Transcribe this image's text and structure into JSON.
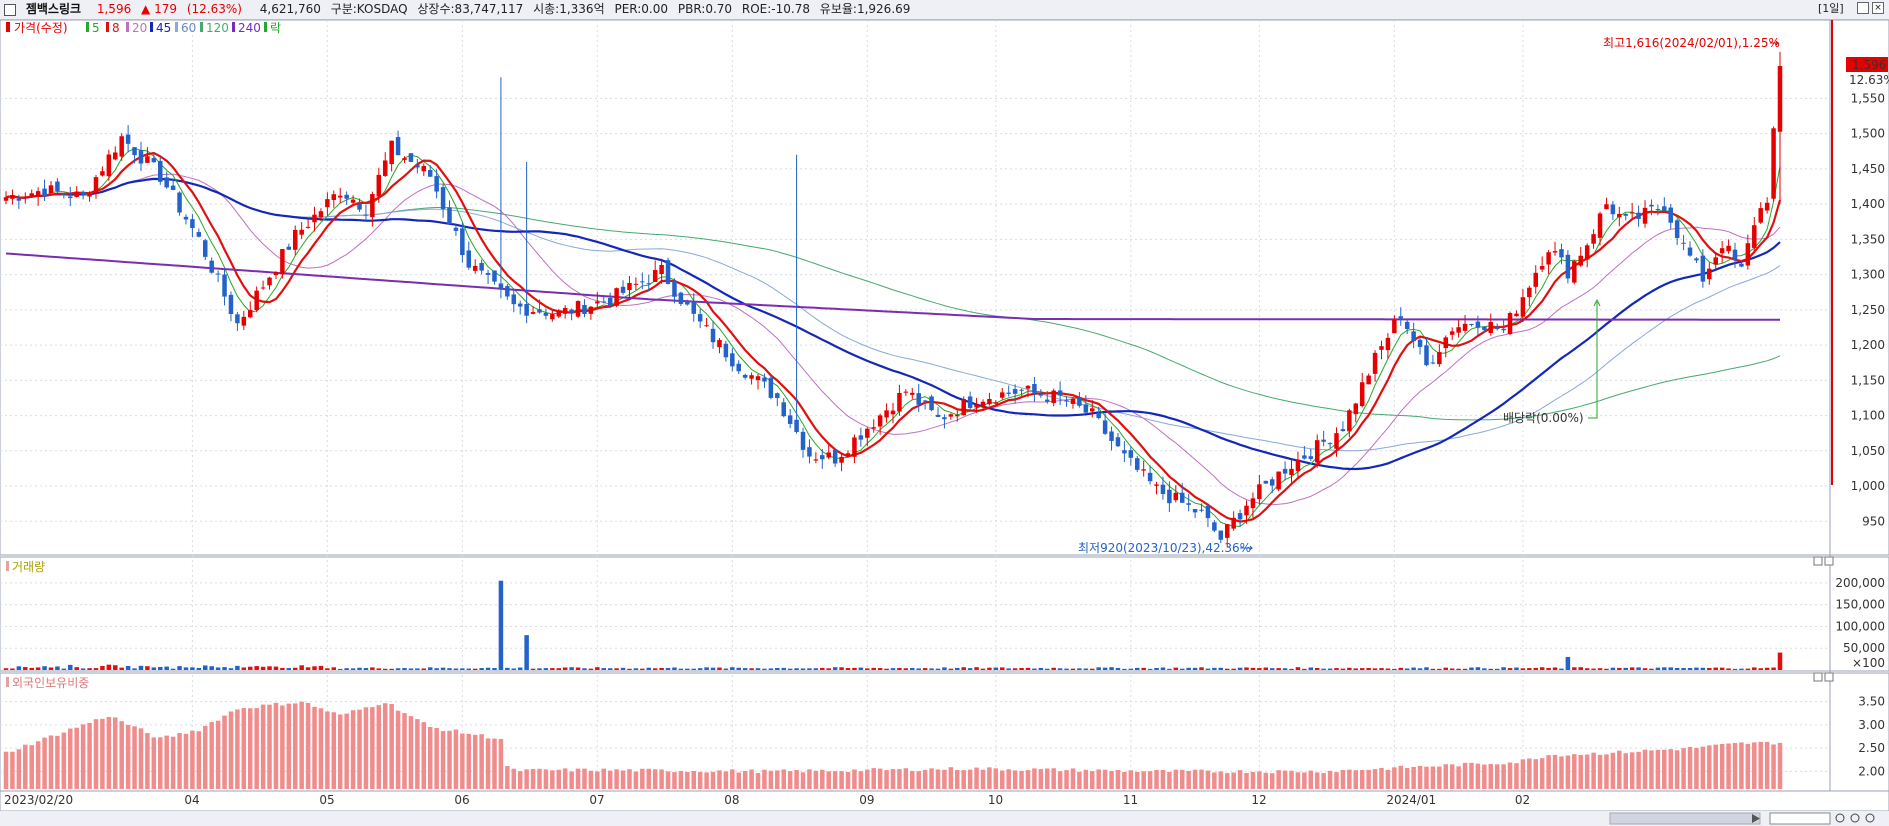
{
  "header": {
    "name": "젬백스링크",
    "price": "1,596",
    "change": "▲ 179",
    "change_pct": "(12.63%)",
    "volume": "4,621,760",
    "market": "구분:KOSDAQ",
    "shares": "상장수:83,747,117",
    "mcap": "시총:1,336억",
    "per": "PER:0.00",
    "pbr": "PBR:0.70",
    "roe": "ROE:-10.78",
    "float": "유보율:1,926.69",
    "period": "[1일]"
  },
  "colors": {
    "up": "#e60000",
    "down": "#2262c9",
    "ma5": "#2aa62a",
    "ma8": "#e01010",
    "ma20": "#c070c0",
    "ma45": "#1428b8",
    "ma60": "#8aa8d8",
    "ma120": "#48a870",
    "ma240": "#7a2db0",
    "volume_up": "#e01010",
    "volume_down": "#2262c9",
    "foreign": "#f08c8c",
    "grid": "#d8dce6"
  },
  "legends": {
    "price_panel": [
      "가격(수정)",
      "5",
      "8",
      "20",
      "45",
      "60",
      "120",
      "240",
      "락"
    ],
    "volume_panel": "거래량",
    "foreign_panel": "외국인보유비중"
  },
  "annotations": {
    "high": "최고1,616(2024/02/01),1.25%",
    "low": "최저920(2023/10/23),42.36%",
    "ex_dividend": "배당락(0.00%)",
    "last_price": "1,596",
    "last_pct": "12.63%"
  },
  "chart_data": {
    "type": "candlestick",
    "x_labels": [
      "2023/02/20",
      "04",
      "05",
      "06",
      "07",
      "08",
      "09",
      "10",
      "11",
      "12",
      "2024/01",
      "02"
    ],
    "price_axis": {
      "ylim": [
        905,
        1640
      ],
      "ticks": [
        "1,550",
        "1,500",
        "1,450",
        "1,400",
        "1,350",
        "1,300",
        "1,250",
        "1,200",
        "1,150",
        "1,100",
        "1,050",
        "1,000",
        "950"
      ]
    },
    "volume_axis": {
      "ylim": [
        0,
        225000
      ],
      "ticks": [
        "200,000",
        "150,000",
        "100,000",
        "50,000",
        "×100"
      ]
    },
    "foreign_axis": {
      "ylim": [
        1.62,
        3.75
      ],
      "ticks": [
        "3.50",
        "3.00",
        "2.50",
        "2.00"
      ]
    },
    "price_path": [
      [
        0,
        1410
      ],
      [
        6,
        1420
      ],
      [
        12,
        1410
      ],
      [
        18,
        1495
      ],
      [
        24,
        1440
      ],
      [
        30,
        1350
      ],
      [
        36,
        1230
      ],
      [
        40,
        1285
      ],
      [
        45,
        1355
      ],
      [
        52,
        1420
      ],
      [
        56,
        1395
      ],
      [
        60,
        1480
      ],
      [
        66,
        1440
      ],
      [
        72,
        1315
      ],
      [
        79,
        1255
      ],
      [
        86,
        1245
      ],
      [
        94,
        1265
      ],
      [
        102,
        1305
      ],
      [
        107,
        1240
      ],
      [
        113,
        1180
      ],
      [
        120,
        1125
      ],
      [
        125,
        1045
      ],
      [
        129,
        1040
      ],
      [
        133,
        1075
      ],
      [
        140,
        1135
      ],
      [
        145,
        1095
      ],
      [
        151,
        1125
      ],
      [
        158,
        1135
      ],
      [
        164,
        1125
      ],
      [
        169,
        1100
      ],
      [
        174,
        1040
      ],
      [
        179,
        995
      ],
      [
        186,
        960
      ],
      [
        189,
        925
      ],
      [
        193,
        975
      ],
      [
        199,
        1025
      ],
      [
        204,
        1055
      ],
      [
        208,
        1085
      ],
      [
        213,
        1180
      ],
      [
        217,
        1245
      ],
      [
        221,
        1170
      ],
      [
        225,
        1225
      ],
      [
        229,
        1235
      ],
      [
        233,
        1220
      ],
      [
        236,
        1270
      ],
      [
        240,
        1340
      ],
      [
        243,
        1305
      ],
      [
        246,
        1345
      ],
      [
        249,
        1400
      ],
      [
        252,
        1375
      ],
      [
        255,
        1385
      ],
      [
        258,
        1400
      ],
      [
        261,
        1340
      ],
      [
        264,
        1295
      ],
      [
        267,
        1345
      ],
      [
        270,
        1305
      ],
      [
        272,
        1375
      ],
      [
        274,
        1410
      ],
      [
        276,
        1596
      ]
    ],
    "candles_count": 277,
    "ma_periods": [
      5,
      8,
      20,
      45,
      60,
      120,
      240
    ],
    "ma240_path": [
      [
        0,
        1330
      ],
      [
        100,
        1265
      ],
      [
        160,
        1237
      ],
      [
        276,
        1236
      ]
    ],
    "volume_spikes": [
      [
        77,
        205000
      ],
      [
        81,
        80000
      ],
      [
        243,
        30000
      ],
      [
        276,
        40000
      ]
    ],
    "foreign_path": [
      [
        0,
        2.4
      ],
      [
        8,
        2.8
      ],
      [
        16,
        3.2
      ],
      [
        24,
        2.7
      ],
      [
        30,
        2.9
      ],
      [
        36,
        3.35
      ],
      [
        46,
        3.5
      ],
      [
        52,
        3.2
      ],
      [
        59,
        3.5
      ],
      [
        66,
        2.95
      ],
      [
        77,
        2.7
      ],
      [
        78,
        2.1
      ],
      [
        79,
        2.02
      ],
      [
        90,
        2.03
      ],
      [
        120,
        2.0
      ],
      [
        150,
        2.06
      ],
      [
        180,
        2.0
      ],
      [
        205,
        2.0
      ],
      [
        220,
        2.1
      ],
      [
        235,
        2.2
      ],
      [
        240,
        2.35
      ],
      [
        250,
        2.4
      ],
      [
        262,
        2.5
      ],
      [
        270,
        2.6
      ],
      [
        276,
        2.62
      ]
    ]
  }
}
